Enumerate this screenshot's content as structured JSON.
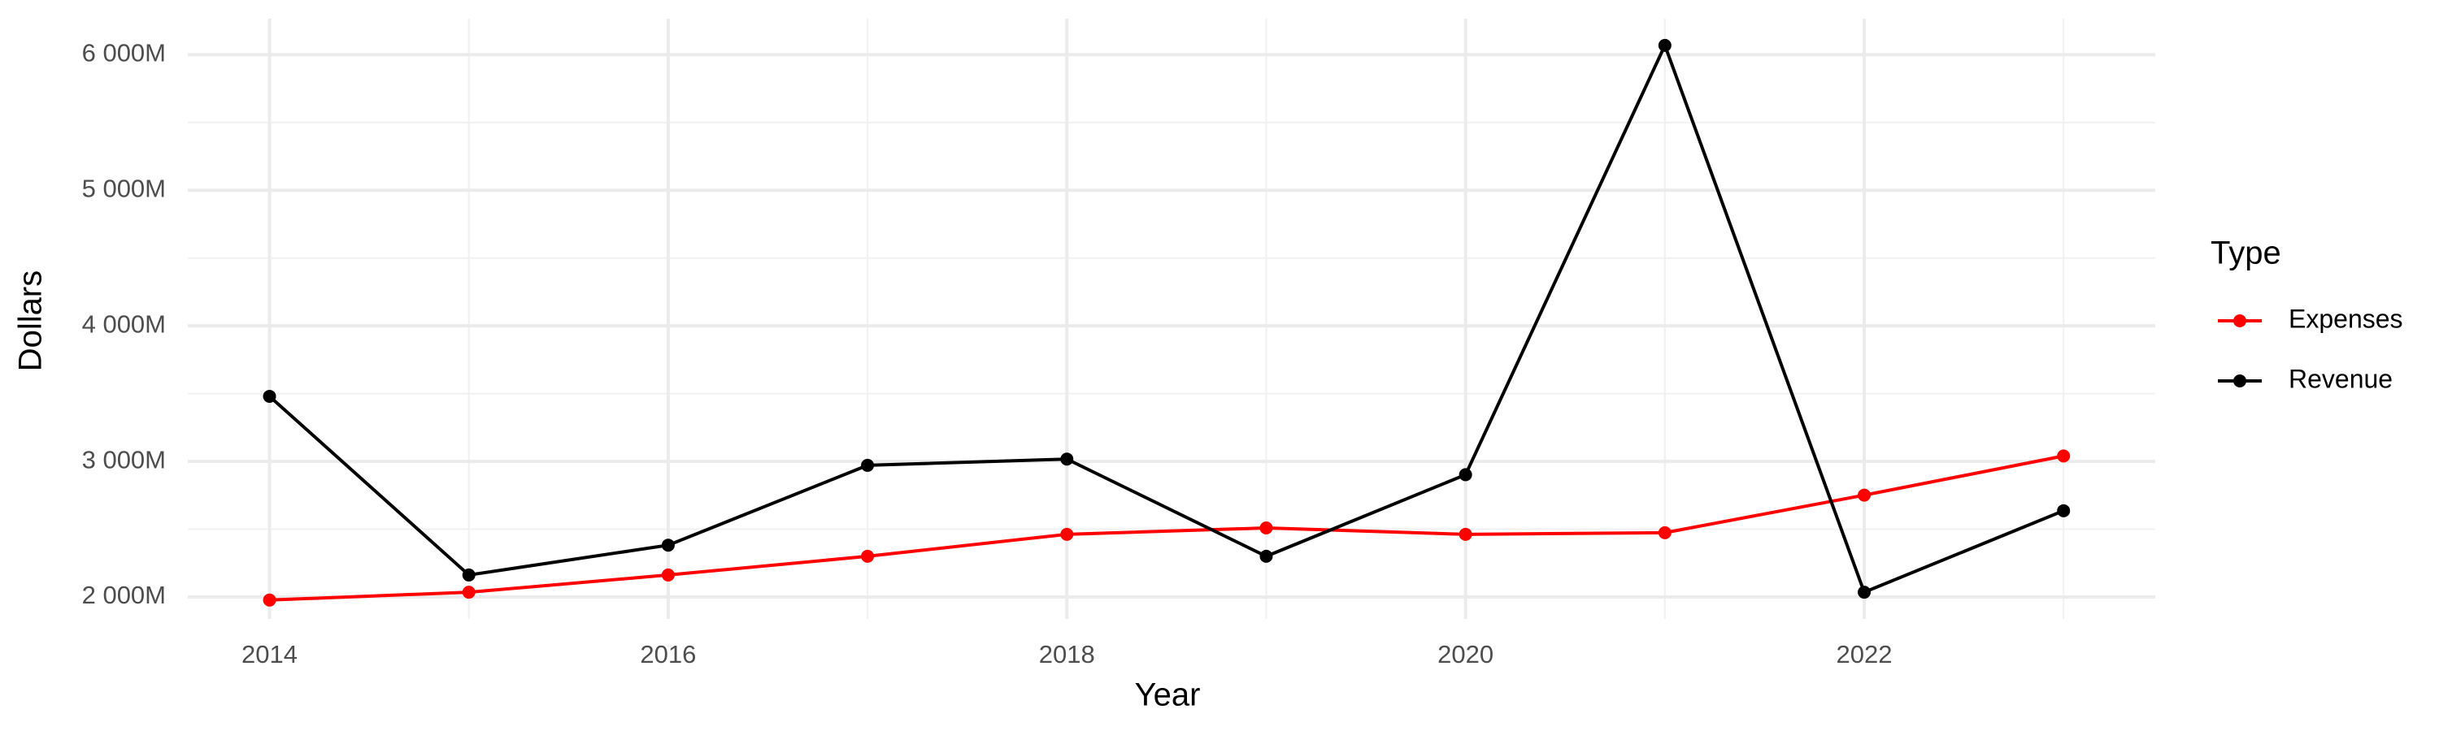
{
  "chart_data": {
    "type": "line",
    "x_label": "Year",
    "y_label": "Dollars",
    "legend_title": "Type",
    "x": [
      2014,
      2015,
      2016,
      2017,
      2018,
      2019,
      2020,
      2021,
      2022,
      2023
    ],
    "series": [
      {
        "name": "Expenses",
        "color": "#ff0000",
        "values": [
          1977,
          2035,
          2162,
          2300,
          2462,
          2509,
          2462,
          2474,
          2751,
          3040
        ]
      },
      {
        "name": "Revenue",
        "color": "#000000",
        "values": [
          3480,
          2162,
          2382,
          2971,
          3017,
          2300,
          2902,
          6069,
          2035,
          2636
        ]
      }
    ],
    "xlim": [
      2013.59,
      2023.46
    ],
    "xticks": [
      2014,
      2016,
      2018,
      2020,
      2022
    ],
    "ylim": [
      1838,
      6266
    ],
    "yticks": [
      {
        "value": 2000,
        "label": "2 000M"
      },
      {
        "value": 3000,
        "label": "3 000M"
      },
      {
        "value": 4000,
        "label": "4 000M"
      },
      {
        "value": 5000,
        "label": "5 000M"
      },
      {
        "value": 6000,
        "label": "6 000M"
      }
    ],
    "grid": true,
    "legend_position": "right"
  }
}
